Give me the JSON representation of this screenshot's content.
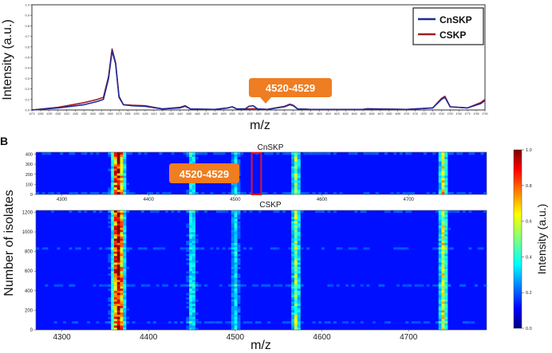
{
  "panel_b_label": "B",
  "callout": {
    "text": "4520-4529",
    "color": "#ef7d22"
  },
  "chart_data": [
    {
      "type": "line",
      "xlabel": "m/z",
      "ylabel": "Intensity (a.u.)",
      "xlim": [
        4270,
        4790
      ],
      "ylim": [
        0,
        1.0
      ],
      "yticks": [
        "0.0",
        "0.1",
        "0.2",
        "0.3",
        "0.4",
        "0.5",
        "0.6",
        "0.7",
        "0.8",
        "0.9",
        "1.0"
      ],
      "legend_position": "top-right",
      "series": [
        {
          "name": "CnSKP",
          "color": "#1f2a99",
          "x": [
            4270,
            4300,
            4330,
            4345,
            4352,
            4358,
            4362,
            4366,
            4370,
            4375,
            4385,
            4400,
            4420,
            4440,
            4446,
            4452,
            4480,
            4495,
            4500,
            4505,
            4515,
            4519,
            4524,
            4529,
            4540,
            4560,
            4566,
            4570,
            4575,
            4590,
            4620,
            4650,
            4655,
            4700,
            4730,
            4740,
            4744,
            4750,
            4770,
            4785,
            4790
          ],
          "y": [
            0.0,
            0.02,
            0.05,
            0.08,
            0.1,
            0.3,
            0.56,
            0.44,
            0.12,
            0.05,
            0.04,
            0.035,
            0.01,
            0.02,
            0.035,
            0.01,
            0.005,
            0.02,
            0.03,
            0.01,
            0.01,
            0.035,
            0.04,
            0.01,
            0.005,
            0.03,
            0.05,
            0.04,
            0.01,
            0.005,
            0.005,
            0.005,
            0.01,
            0.005,
            0.02,
            0.1,
            0.12,
            0.03,
            0.02,
            0.06,
            0.09
          ]
        },
        {
          "name": "CSKP",
          "color": "#a11d22",
          "x": [
            4270,
            4300,
            4330,
            4345,
            4352,
            4358,
            4362,
            4366,
            4370,
            4375,
            4385,
            4400,
            4420,
            4440,
            4446,
            4452,
            4480,
            4495,
            4500,
            4505,
            4515,
            4519,
            4524,
            4529,
            4540,
            4560,
            4566,
            4570,
            4575,
            4590,
            4620,
            4650,
            4655,
            4700,
            4730,
            4740,
            4744,
            4750,
            4770,
            4785,
            4790
          ],
          "y": [
            0.0,
            0.025,
            0.07,
            0.1,
            0.12,
            0.32,
            0.58,
            0.45,
            0.13,
            0.05,
            0.045,
            0.04,
            0.01,
            0.025,
            0.04,
            0.01,
            0.005,
            0.02,
            0.03,
            0.01,
            0.01,
            0.01,
            0.012,
            0.01,
            0.005,
            0.035,
            0.055,
            0.045,
            0.01,
            0.005,
            0.005,
            0.005,
            0.012,
            0.005,
            0.02,
            0.11,
            0.13,
            0.03,
            0.02,
            0.07,
            0.1
          ]
        }
      ]
    },
    {
      "type": "heatmap",
      "title": "CnSKP",
      "xlabel": "",
      "ylabel": "",
      "xlim": [
        4270,
        4790
      ],
      "ylim": [
        0,
        420
      ],
      "xticks": [
        4300,
        4400,
        4500,
        4600,
        4700
      ],
      "yticks": [
        0,
        100,
        200,
        300,
        400
      ],
      "highlight_range": [
        4520,
        4529
      ]
    },
    {
      "type": "heatmap",
      "title": "CSKP",
      "xlabel": "m/z",
      "ylabel": "Number of isolates",
      "xlim": [
        4270,
        4790
      ],
      "ylim": [
        0,
        1220
      ],
      "xticks": [
        4300,
        4400,
        4500,
        4600,
        4700
      ],
      "yticks": [
        0,
        200,
        400,
        600,
        800,
        1000,
        1200
      ],
      "colorbar": {
        "label": "Intensity (a.u.)",
        "range": [
          0.0,
          1.0
        ],
        "ticks": [
          "0.0",
          "0.2",
          "0.4",
          "0.6",
          "0.8",
          "1.0"
        ],
        "colormap": "jet"
      },
      "bands": [
        {
          "center": 4365,
          "strength": 1.0
        },
        {
          "center": 4450,
          "strength": 0.3
        },
        {
          "center": 4500,
          "strength": 0.25
        },
        {
          "center": 4570,
          "strength": 0.45
        },
        {
          "center": 4740,
          "strength": 0.55
        }
      ]
    }
  ]
}
